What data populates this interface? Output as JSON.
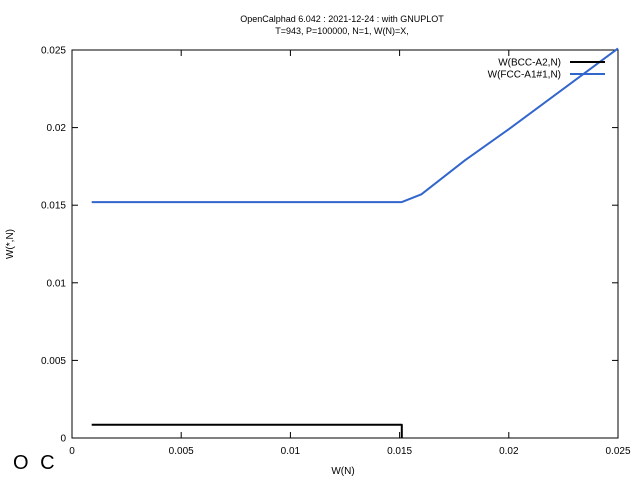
{
  "chart_data": {
    "type": "line",
    "title": "OpenCalphad   6.042 :  2021-12-24 : with GNUPLOT",
    "subtitle": "T=943, P=100000, N=1, W(N)=X,",
    "xlabel": "W(N)",
    "ylabel": "W(*,N)",
    "xlim": [
      0,
      0.025
    ],
    "ylim": [
      0,
      0.025
    ],
    "xticks": [
      0,
      0.005,
      0.01,
      0.015,
      0.02,
      0.025
    ],
    "xtick_labels": [
      "0",
      "0.005",
      "0.01",
      "0.015",
      "0.02",
      "0.025"
    ],
    "yticks": [
      0,
      0.005,
      0.01,
      0.015,
      0.02,
      0.025
    ],
    "ytick_labels": [
      "0",
      "0.005",
      "0.01",
      "0.015",
      "0.02",
      "0.025"
    ],
    "grid": false,
    "legend_position": "top-right",
    "series": [
      {
        "name": "W(BCC-A2,N)",
        "color": "#000000",
        "points": [
          [
            0.0009,
            0.00085
          ],
          [
            0.0151,
            0.00085
          ],
          [
            0.0151,
            0.0
          ]
        ]
      },
      {
        "name": "W(FCC-A1#1,N)",
        "color": "#3366cc",
        "points": [
          [
            0.0009,
            0.0152
          ],
          [
            0.0151,
            0.0152
          ],
          [
            0.016,
            0.0157
          ],
          [
            0.018,
            0.0179
          ],
          [
            0.02,
            0.0199
          ],
          [
            0.025,
            0.0251
          ]
        ]
      }
    ]
  },
  "logo_text": "O C"
}
